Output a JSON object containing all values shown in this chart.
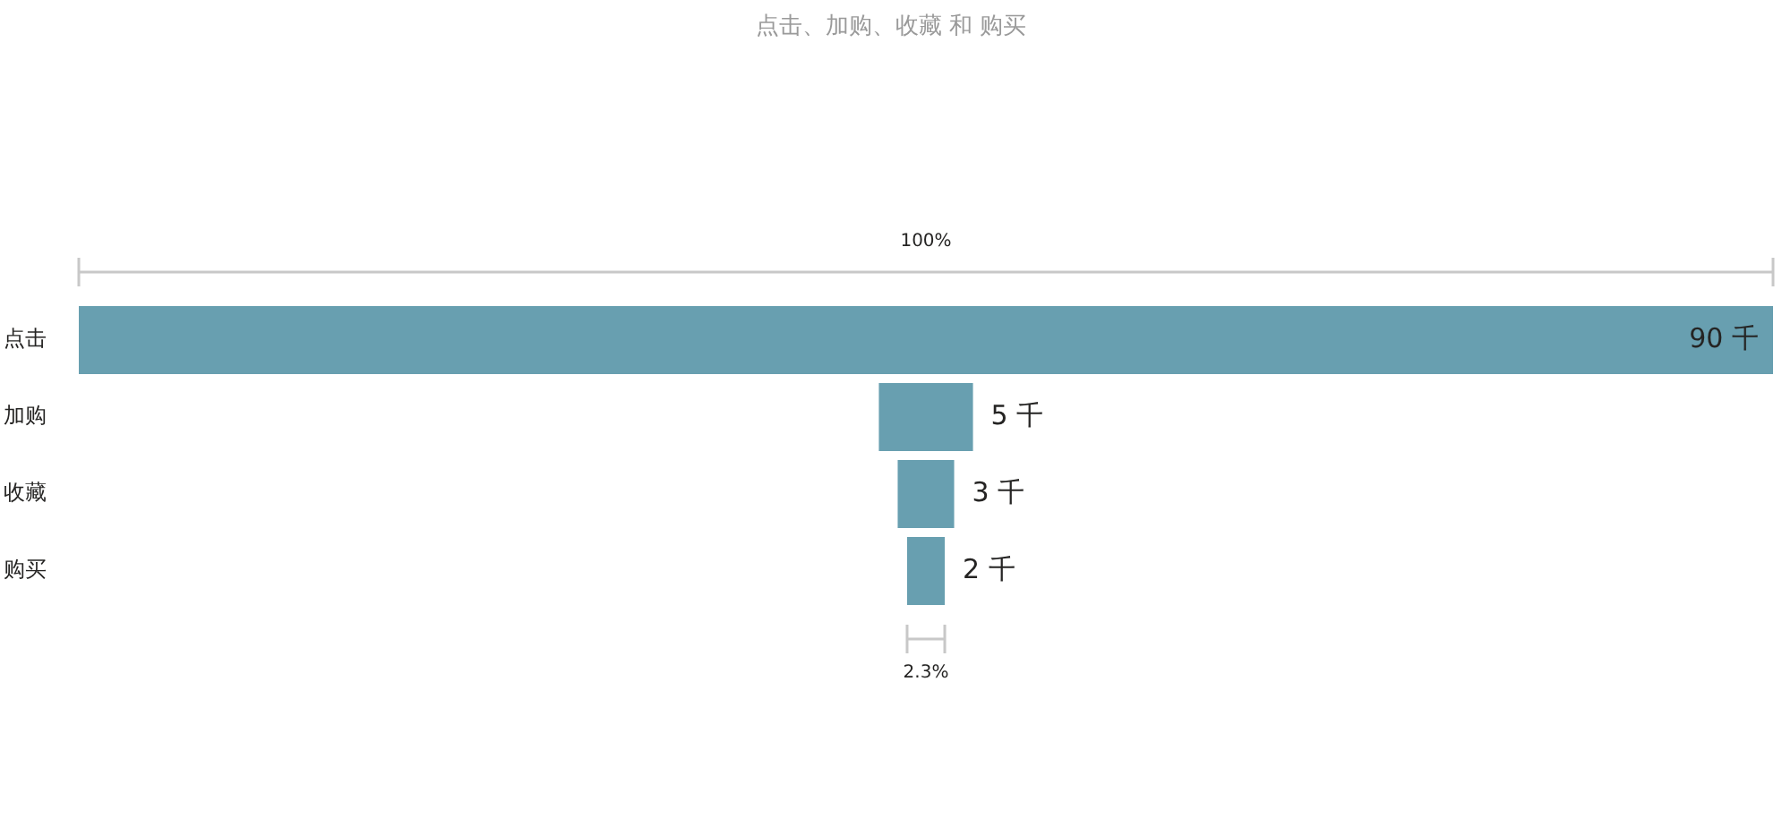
{
  "chart_data": {
    "type": "other",
    "title": "点击、加购、收藏 和 购买",
    "categories": [
      "点击",
      "加购",
      "收藏",
      "购买"
    ],
    "values": [
      90,
      5,
      3,
      2
    ],
    "value_labels": [
      "90 千",
      "5 千",
      "3 千",
      "2 千"
    ],
    "color": "#689fb0",
    "annotations": [
      "100%",
      "2.3%"
    ]
  }
}
